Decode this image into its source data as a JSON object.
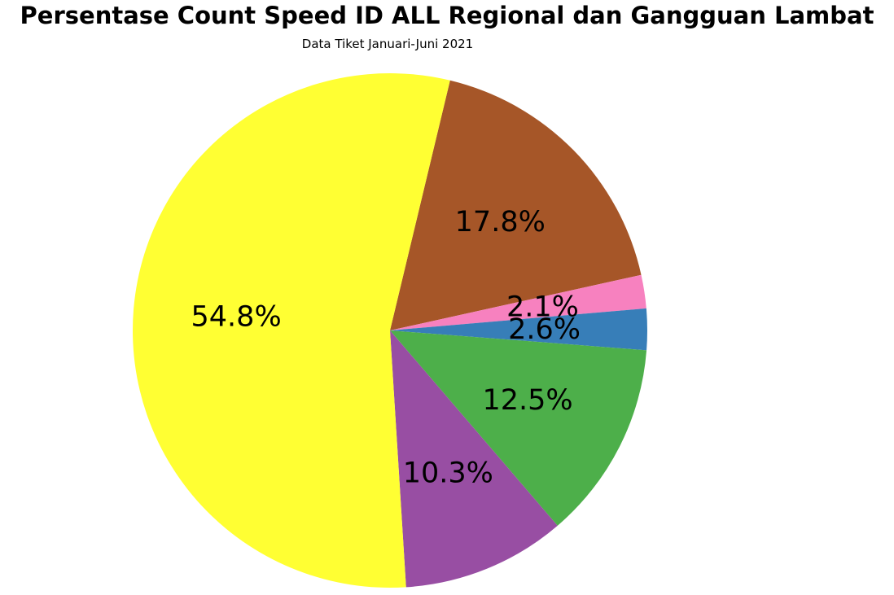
{
  "chart_data": {
    "type": "pie",
    "title": "Persentase Count Speed ID ALL Regional dan Gangguan Lambat",
    "subtitle": "Data Tiket Januari-Juni 2021",
    "slices": [
      {
        "value": 17.8,
        "label": "17.8%",
        "color": "#a65628"
      },
      {
        "value": 2.1,
        "label": "2.1%",
        "color": "#f781bf"
      },
      {
        "value": 2.6,
        "label": "2.6%",
        "color": "#377eb8"
      },
      {
        "value": 12.5,
        "label": "12.5%",
        "color": "#4daf4a"
      },
      {
        "value": 10.3,
        "label": "10.3%",
        "color": "#984ea3"
      },
      {
        "value": 54.8,
        "label": "54.8%",
        "color": "#ffff33"
      }
    ]
  }
}
